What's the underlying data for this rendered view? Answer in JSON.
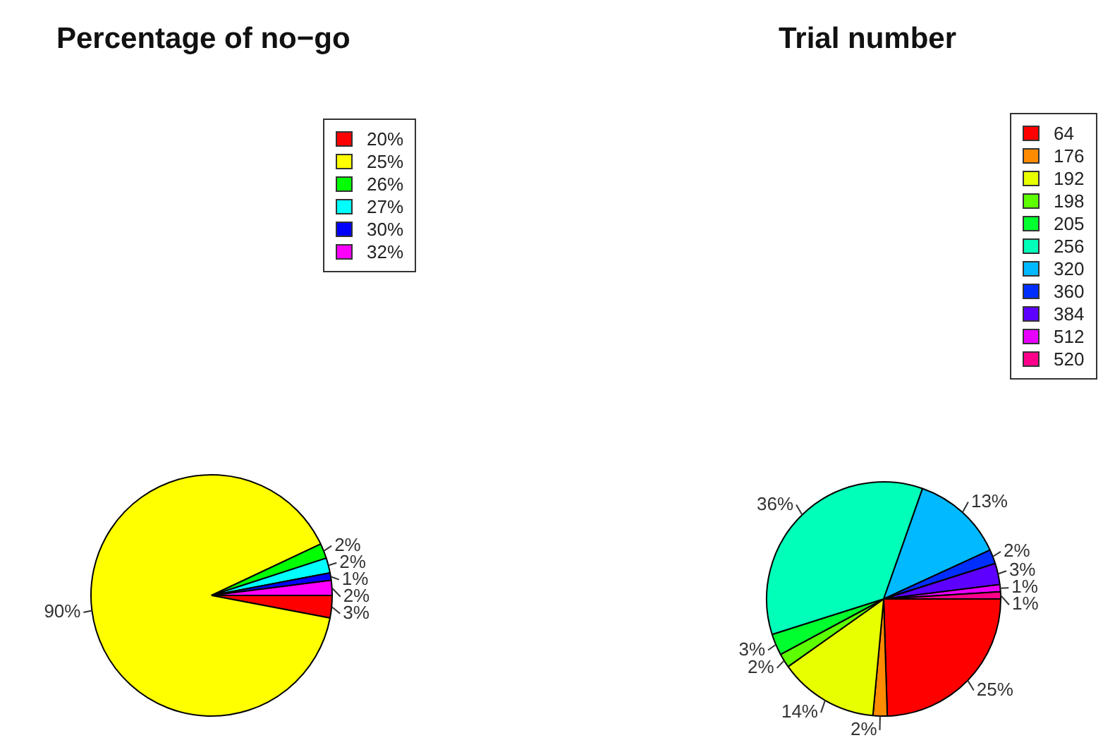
{
  "chart_data": [
    {
      "type": "pie",
      "title": "Percentage of no−go",
      "categories": [
        "20%",
        "25%",
        "26%",
        "27%",
        "30%",
        "32%"
      ],
      "values": [
        3,
        90,
        2,
        2,
        1,
        2
      ],
      "colors": [
        "#ff0000",
        "#ffff00",
        "#00ff00",
        "#00ffff",
        "#0000ff",
        "#ff00ff"
      ],
      "value_labels": [
        "3%",
        "90%",
        "2%",
        "2%",
        "1%",
        "2%"
      ],
      "legend": "top right"
    },
    {
      "type": "pie",
      "title": "Trial number",
      "categories": [
        "64",
        "176",
        "192",
        "198",
        "205",
        "256",
        "320",
        "360",
        "384",
        "512",
        "520"
      ],
      "values": [
        25,
        2,
        14,
        2,
        3,
        36,
        13,
        2,
        3,
        1,
        1
      ],
      "colors": [
        "#ff0000",
        "#ff8b00",
        "#e8ff00",
        "#5dff00",
        "#00ff2e",
        "#00ffb9",
        "#00b9ff",
        "#002eff",
        "#5d00ff",
        "#e800ff",
        "#ff008b"
      ],
      "value_labels": [
        "25%",
        "2%",
        "14%",
        "2%",
        "3%",
        "36%",
        "13%",
        "2%",
        "3%",
        "1%",
        "1%"
      ],
      "legend": "top right"
    }
  ]
}
